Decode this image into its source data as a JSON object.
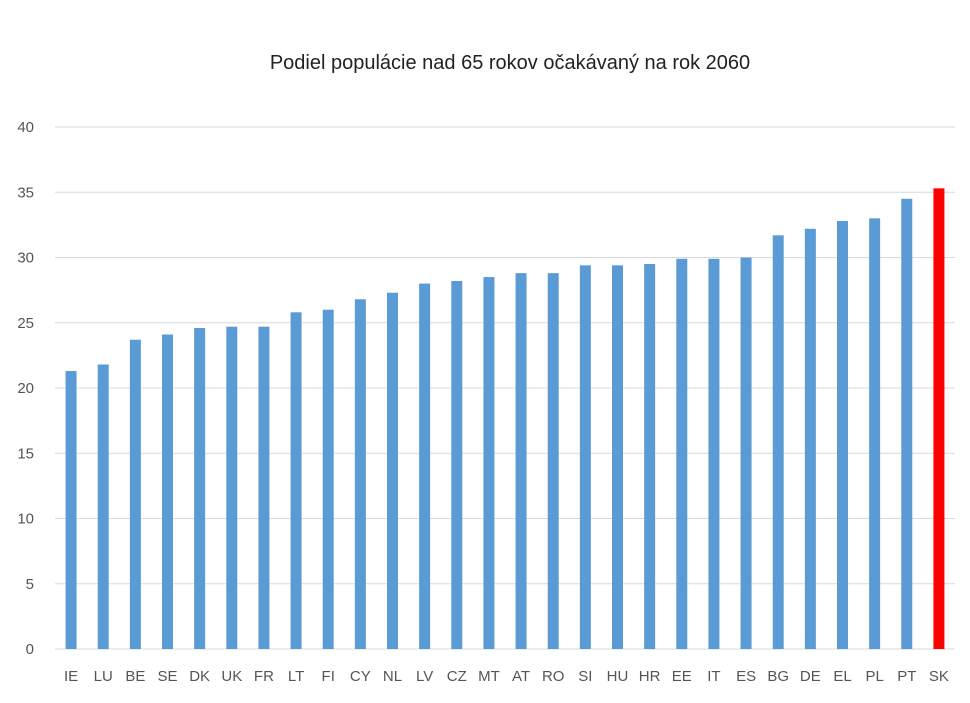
{
  "chart_data": {
    "type": "bar",
    "title": "Podiel populácie nad 65 rokov očakávaný na rok 2060",
    "xlabel": "",
    "ylabel": "",
    "ylim": [
      0,
      40
    ],
    "yticks": [
      "0",
      "5",
      "10",
      "15",
      "20",
      "25",
      "30",
      "35",
      "40"
    ],
    "grid": true,
    "categories": [
      "IE",
      "LU",
      "BE",
      "SE",
      "DK",
      "UK",
      "FR",
      "LT",
      "FI",
      "CY",
      "NL",
      "LV",
      "CZ",
      "MT",
      "AT",
      "RO",
      "SI",
      "HU",
      "HR",
      "EE",
      "IT",
      "ES",
      "BG",
      "DE",
      "EL",
      "PL",
      "PT",
      "SK"
    ],
    "values": [
      21.3,
      21.8,
      23.7,
      24.1,
      24.6,
      24.7,
      24.7,
      25.8,
      26.0,
      26.8,
      27.3,
      28.0,
      28.2,
      28.5,
      28.8,
      28.8,
      29.4,
      29.4,
      29.5,
      29.9,
      29.9,
      30.0,
      31.7,
      32.2,
      32.8,
      33.0,
      34.5,
      35.3
    ],
    "colors": {
      "default": "#5b9bd5",
      "highlight": "#ff0000"
    },
    "highlight_category": "SK"
  }
}
